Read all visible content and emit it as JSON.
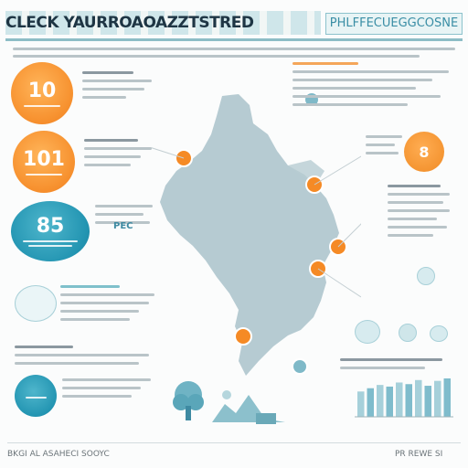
{
  "header": {
    "title": "CLECK YAURROAOAZZTSTRED",
    "subtitle": "PHLFFECUEGGCOSNE"
  },
  "stats": [
    {
      "value": "10",
      "color": "#f79230"
    },
    {
      "value": "101",
      "color": "#f79230"
    },
    {
      "value": "85",
      "color": "#2395b2"
    }
  ],
  "badge": {
    "value": "8"
  },
  "map": {
    "fill": "#a9c2ca",
    "pins": 7
  },
  "side_label": "PEC",
  "bars": [
    62,
    70,
    78,
    74,
    84,
    80,
    90,
    76,
    88,
    94
  ],
  "footer": {
    "left": "BKGI AL ASAHECI SOOYC",
    "right": "PR REWE SI"
  },
  "colors": {
    "accent_orange": "#f79230",
    "accent_teal": "#2395b2",
    "map": "#a9c2ca"
  }
}
